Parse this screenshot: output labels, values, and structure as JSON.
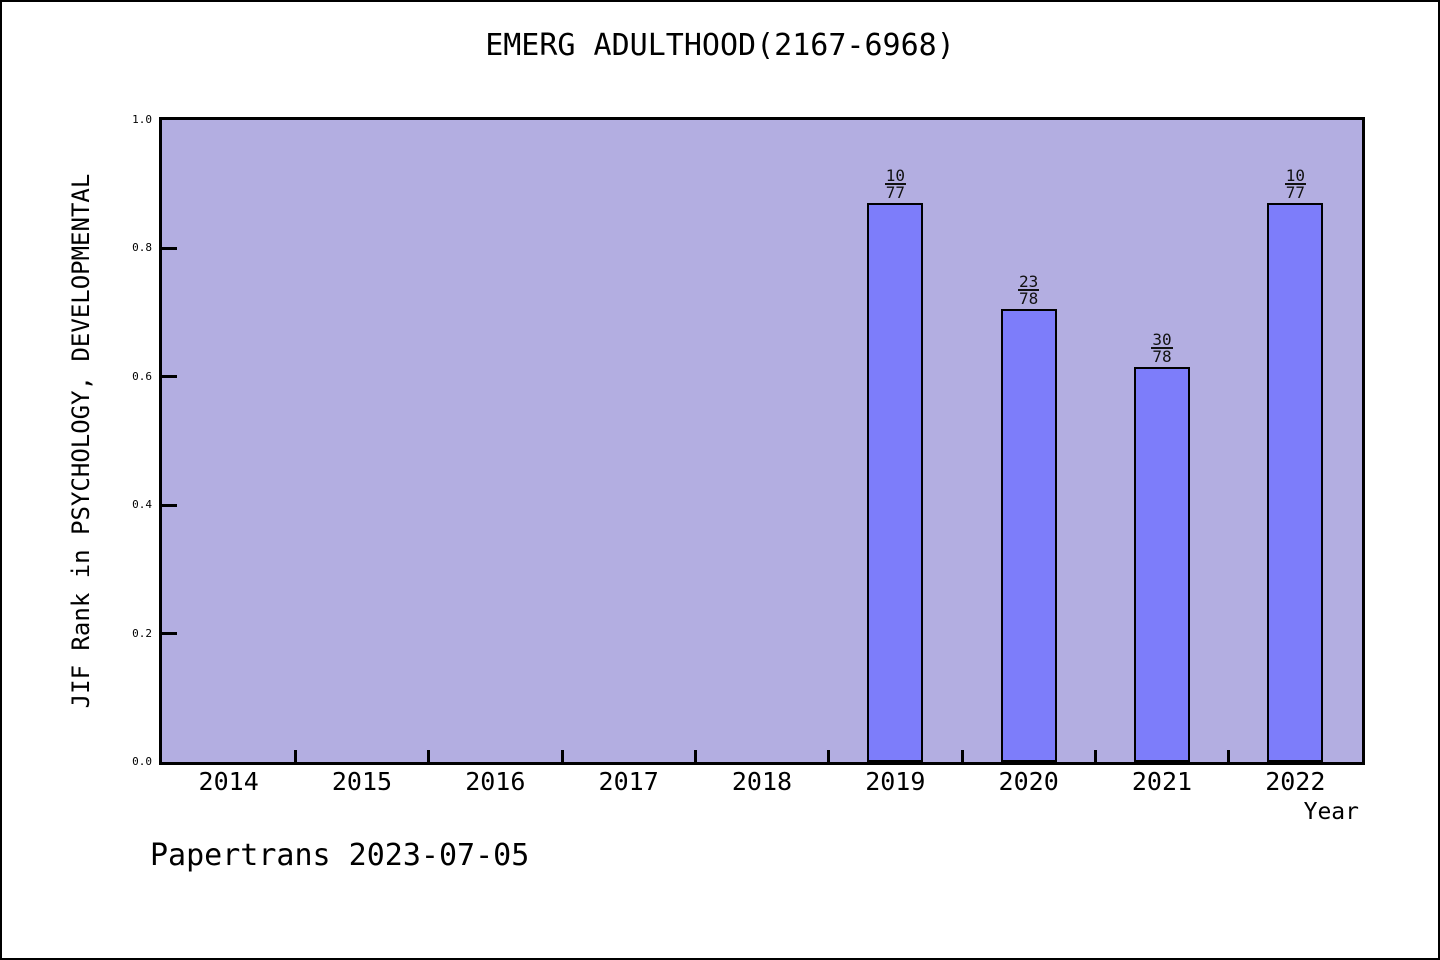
{
  "colors": {
    "bar_fill": "#7d7dfa",
    "bar_border": "#000000",
    "plot_background": "#b3aee1",
    "page_background": "#ffffff",
    "text": "#000000"
  },
  "footer": {
    "text": "Papertrans 2023-07-05"
  },
  "chart_data": {
    "type": "bar",
    "title": "EMERG ADULTHOOD(2167-6968)",
    "xlabel": "Year",
    "ylabel": "JIF Rank in PSYCHOLOGY, DEVELOPMENTAL",
    "ylim": [
      0.0,
      1.0
    ],
    "yticks": [
      0.0,
      0.2,
      0.4,
      0.6,
      0.8,
      1.0
    ],
    "grid": "off",
    "legend": "none",
    "categories": [
      "2014",
      "2015",
      "2016",
      "2017",
      "2018",
      "2019",
      "2020",
      "2021",
      "2022"
    ],
    "bars": [
      {
        "year": "2019",
        "value": 0.8701,
        "label_numerator": "10",
        "label_denominator": "77"
      },
      {
        "year": "2020",
        "value": 0.7051,
        "label_numerator": "23",
        "label_denominator": "78"
      },
      {
        "year": "2021",
        "value": 0.6154,
        "label_numerator": "30",
        "label_denominator": "78"
      },
      {
        "year": "2022",
        "value": 0.8701,
        "label_numerator": "10",
        "label_denominator": "77"
      }
    ]
  }
}
